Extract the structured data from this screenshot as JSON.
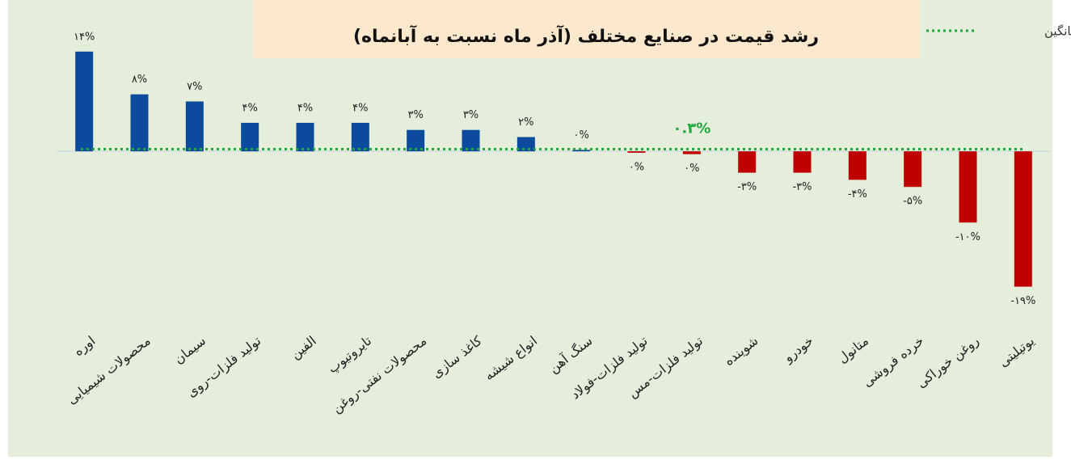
{
  "chart_data": {
    "type": "bar",
    "title": "رشد قیمت در صنایع مختلف (آذر ماه نسبت به آبانماه)",
    "categories": [
      "اوره",
      "محصولات شیمیایی",
      "سیمان",
      "تولید فلزات-روی",
      "الفین",
      "تایروتیوپ",
      "محصولات نفتی-روغن",
      "کاغذ سازی",
      "انواع شیشه",
      "سنگ آهن",
      "تولید فلزات-فولاد",
      "تولید فلزات-مس",
      "شوینده",
      "خودرو",
      "متانول",
      "خرده فروشی",
      "روغن خوراکی",
      "یوتیلیتی"
    ],
    "values": [
      14,
      8,
      7,
      4,
      4,
      4,
      3,
      3,
      2,
      0.2,
      -0.2,
      -0.4,
      -3,
      -3,
      -4,
      -5,
      -10,
      -19
    ],
    "value_labels": [
      "۱۴%",
      "۸%",
      "۷%",
      "۴%",
      "۴%",
      "۴%",
      "۳%",
      "۳%",
      "۲%",
      "۰%",
      "۰%",
      "۰%",
      "-۳%",
      "-۳%",
      "-۴%",
      "-۵%",
      "-۱۰%",
      "-۱۹%"
    ],
    "color_positive": "#0b4a9c",
    "color_negative": "#c00000",
    "average": 0.3,
    "average_label": "۰.۳%",
    "average_name": "میانگین",
    "average_color": "#1fa83c",
    "ylim": [
      -22,
      15
    ]
  }
}
